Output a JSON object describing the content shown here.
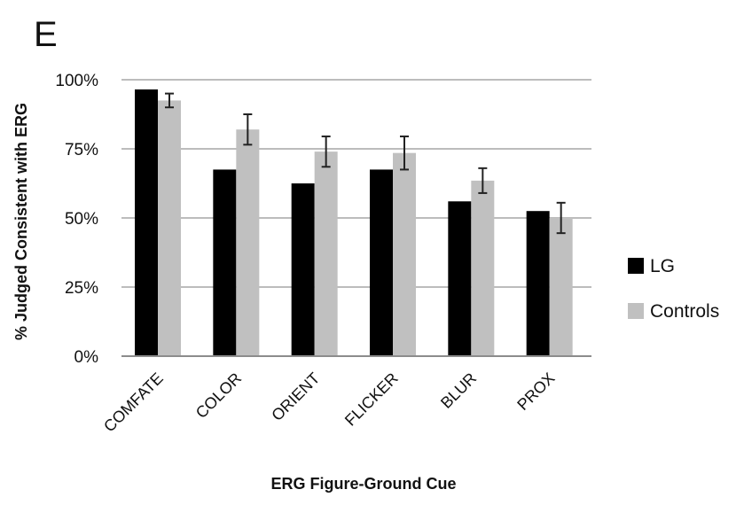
{
  "panel_label": "E",
  "chart_data": {
    "type": "bar",
    "categories": [
      "COMFATE",
      "COLOR",
      "ORIENT",
      "FLICKER",
      "BLUR",
      "PROX"
    ],
    "series": [
      {
        "name": "LG",
        "values": [
          96.5,
          67.5,
          62.5,
          67.5,
          56,
          52.5
        ],
        "color": "#000000"
      },
      {
        "name": "Controls",
        "values": [
          92.5,
          82,
          74,
          73.5,
          63.5,
          50
        ],
        "color": "#c0c0c0",
        "error": [
          2.5,
          5.5,
          5.5,
          6,
          4.5,
          5.5
        ]
      }
    ],
    "xlabel": "ERG Figure-Ground Cue",
    "ylabel": "% Judged Consistent with ERG",
    "ylim": [
      0,
      100
    ],
    "yticks": [
      "0%",
      "25%",
      "50%",
      "75%",
      "100%"
    ],
    "ytick_values": [
      0,
      25,
      50,
      75,
      100
    ],
    "grid": true,
    "legend_position": "right"
  }
}
